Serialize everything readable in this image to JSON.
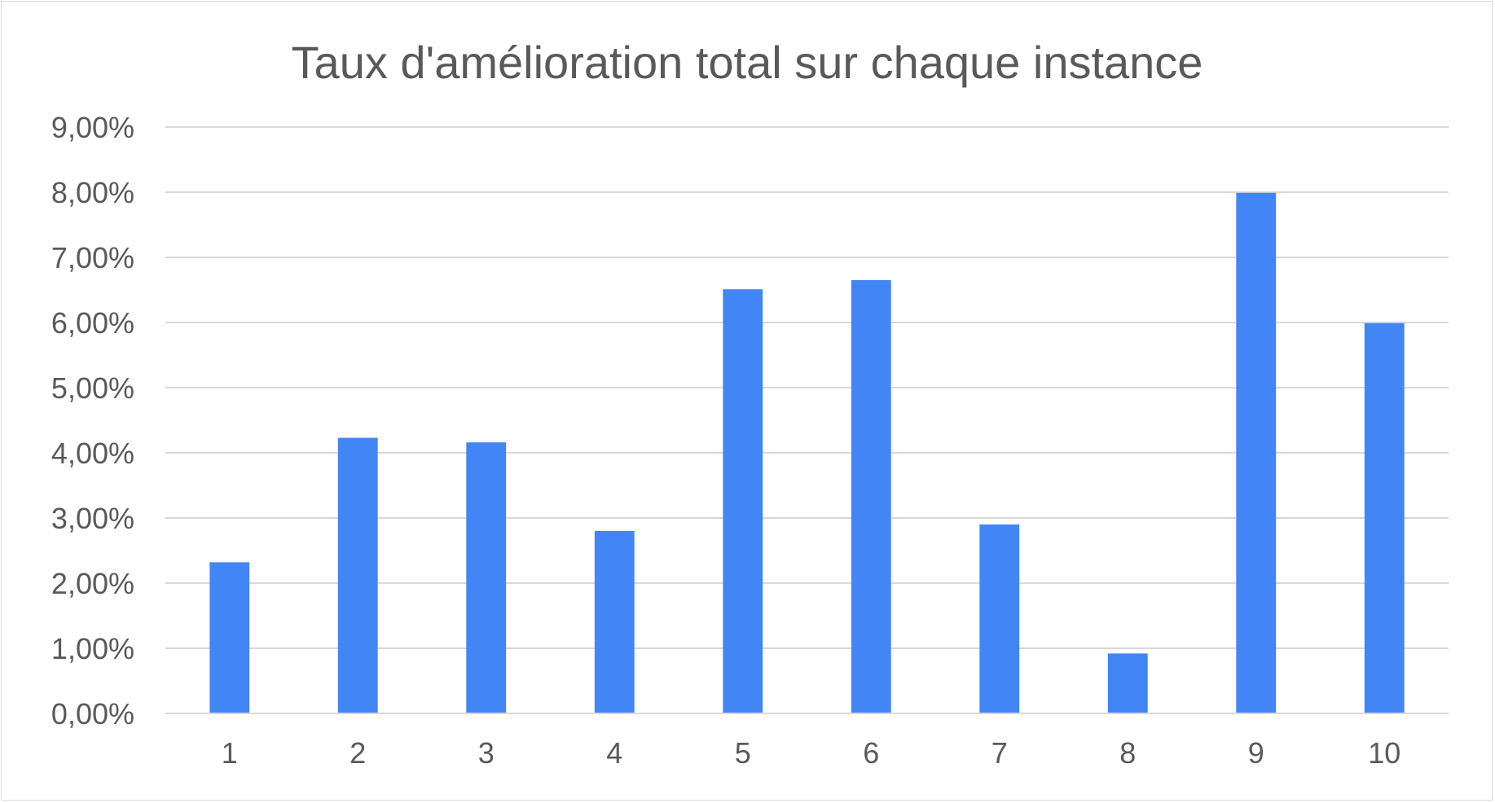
{
  "chart_data": {
    "type": "bar",
    "title": "Taux d'amélioration total sur chaque instance",
    "xlabel": "",
    "ylabel": "",
    "categories": [
      "1",
      "2",
      "3",
      "4",
      "5",
      "6",
      "7",
      "8",
      "9",
      "10"
    ],
    "values": [
      2.32,
      4.23,
      4.16,
      2.8,
      6.51,
      6.65,
      2.9,
      0.92,
      7.99,
      5.99
    ],
    "value_unit": "%",
    "ylim": [
      0,
      9
    ],
    "yticks": [
      0,
      1,
      2,
      3,
      4,
      5,
      6,
      7,
      8,
      9
    ],
    "ytick_labels": [
      "0,00%",
      "1,00%",
      "2,00%",
      "3,00%",
      "4,00%",
      "5,00%",
      "6,00%",
      "7,00%",
      "8,00%",
      "9,00%"
    ],
    "grid": true,
    "legend": "none",
    "bar_color": "#4285f4"
  }
}
